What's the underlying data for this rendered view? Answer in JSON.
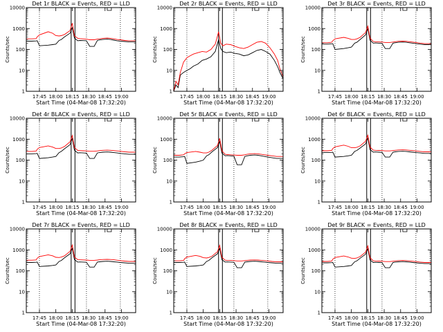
{
  "chart_data": [
    {
      "type": "line",
      "title": "Det 1r BLACK = Events, RED = LLD",
      "xlabel": "Start Time (04-Mar-08 17:32:20)",
      "ylabel": "Counts/sec",
      "xticks": [
        "17:45",
        "18:00",
        "18:15",
        "18:30",
        "18:45",
        "19:00"
      ],
      "yticks": [
        "1",
        "10",
        "100",
        "1000",
        "10000"
      ],
      "ylim": [
        1,
        10000
      ],
      "yscale": "log",
      "x": [
        0,
        5,
        9,
        10,
        12,
        20,
        24,
        27,
        30,
        32,
        35,
        40,
        42,
        44,
        47,
        49,
        52,
        55,
        58,
        62,
        65,
        67,
        70,
        74,
        77,
        80,
        83,
        86,
        90,
        94,
        100
      ],
      "series": [
        {
          "name": "BLACK = Events",
          "color": "#000000",
          "values": [
            250,
            250,
            255,
            260,
            150,
            160,
            170,
            180,
            270,
            300,
            400,
            600,
            1100,
            350,
            260,
            270,
            265,
            260,
            140,
            140,
            270,
            285,
            300,
            310,
            300,
            280,
            260,
            250,
            240,
            230,
            230
          ]
        },
        {
          "name": "RED = LLD",
          "color": "#ff0000",
          "values": [
            320,
            320,
            330,
            400,
            500,
            700,
            600,
            460,
            440,
            460,
            520,
            800,
            1800,
            450,
            340,
            330,
            320,
            310,
            290,
            290,
            310,
            320,
            340,
            350,
            340,
            320,
            300,
            290,
            270,
            260,
            260
          ]
        }
      ]
    },
    {
      "type": "line",
      "title": "Det 2r BLACK = Events, RED = LLD",
      "xlabel": "Start Time (04-Mar-08 17:32:20)",
      "ylabel": "Counts/sec",
      "xticks": [
        "17:45",
        "18:00",
        "18:15",
        "18:30",
        "18:45",
        "19:00"
      ],
      "yticks": [
        "1",
        "10",
        "100",
        "1000",
        "10000"
      ],
      "ylim": [
        1,
        10000
      ],
      "yscale": "log",
      "x": [
        0,
        2,
        4,
        6,
        9,
        12,
        15,
        18,
        22,
        26,
        30,
        34,
        38,
        41,
        43,
        45,
        48,
        52,
        56,
        60,
        64,
        68,
        72,
        76,
        80,
        84,
        88,
        92,
        95,
        97,
        100
      ],
      "series": [
        {
          "name": "BLACK = Events",
          "color": "#000000",
          "values": [
            1,
            2,
            1.5,
            6,
            8,
            10,
            12,
            16,
            20,
            30,
            35,
            45,
            80,
            300,
            110,
            80,
            70,
            75,
            65,
            60,
            50,
            55,
            70,
            90,
            100,
            80,
            60,
            30,
            15,
            8,
            4
          ]
        },
        {
          "name": "RED = LLD",
          "color": "#ff0000",
          "values": [
            1,
            3,
            2,
            8,
            25,
            40,
            50,
            60,
            70,
            80,
            75,
            100,
            180,
            700,
            200,
            150,
            180,
            170,
            140,
            120,
            110,
            130,
            170,
            220,
            240,
            200,
            120,
            60,
            30,
            12,
            5
          ]
        }
      ]
    },
    {
      "type": "line",
      "title": "Det 3r BLACK = Events, RED = LLD",
      "xlabel": "Start Time (04-Mar-08 17:32:20)",
      "ylabel": "Counts/sec",
      "xticks": [
        "17:45",
        "18:00",
        "18:15",
        "18:30",
        "18:45",
        "19:00"
      ],
      "yticks": [
        "1",
        "10",
        "100",
        "1000",
        "10000"
      ],
      "ylim": [
        1,
        10000
      ],
      "yscale": "log",
      "x": [
        0,
        5,
        9,
        10,
        12,
        20,
        24,
        27,
        30,
        32,
        35,
        40,
        42,
        44,
        47,
        49,
        52,
        55,
        58,
        62,
        65,
        67,
        70,
        74,
        77,
        80,
        83,
        86,
        90,
        94,
        100
      ],
      "series": [
        {
          "name": "BLACK = Events",
          "color": "#000000",
          "values": [
            180,
            180,
            185,
            190,
            100,
            110,
            120,
            130,
            200,
            220,
            300,
            500,
            1000,
            280,
            200,
            205,
            200,
            195,
            110,
            110,
            200,
            210,
            220,
            225,
            220,
            210,
            200,
            190,
            180,
            170,
            170
          ]
        },
        {
          "name": "RED = LLD",
          "color": "#ff0000",
          "values": [
            210,
            210,
            220,
            260,
            320,
            380,
            340,
            300,
            300,
            320,
            380,
            650,
            1300,
            350,
            240,
            235,
            230,
            225,
            215,
            215,
            225,
            235,
            245,
            250,
            245,
            235,
            225,
            215,
            200,
            190,
            190
          ]
        }
      ]
    },
    {
      "type": "line",
      "title": "Det 4r BLACK = Events, RED = LLD",
      "xlabel": "Start Time (04-Mar-08 17:32:20)",
      "ylabel": "Counts/sec",
      "xticks": [
        "17:45",
        "18:00",
        "18:15",
        "18:30",
        "18:45",
        "19:00"
      ],
      "yticks": [
        "1",
        "10",
        "100",
        "1000",
        "10000"
      ],
      "ylim": [
        1,
        10000
      ],
      "yscale": "log",
      "x": [
        0,
        5,
        9,
        10,
        12,
        20,
        24,
        27,
        30,
        32,
        35,
        40,
        42,
        44,
        47,
        49,
        52,
        55,
        58,
        62,
        65,
        67,
        70,
        74,
        77,
        80,
        83,
        86,
        90,
        94,
        100
      ],
      "series": [
        {
          "name": "BLACK = Events",
          "color": "#000000",
          "values": [
            200,
            200,
            205,
            210,
            120,
            130,
            140,
            150,
            230,
            260,
            350,
            550,
            1100,
            300,
            220,
            225,
            220,
            215,
            120,
            120,
            220,
            230,
            240,
            245,
            240,
            230,
            220,
            210,
            200,
            190,
            190
          ]
        },
        {
          "name": "RED = LLD",
          "color": "#ff0000",
          "values": [
            260,
            260,
            270,
            330,
            400,
            480,
            420,
            360,
            360,
            380,
            450,
            750,
            1500,
            400,
            290,
            285,
            280,
            275,
            265,
            265,
            275,
            285,
            295,
            300,
            295,
            285,
            275,
            265,
            250,
            240,
            240
          ]
        }
      ]
    },
    {
      "type": "line",
      "title": "Det 5r BLACK = Events, RED = LLD",
      "xlabel": "Start Time (04-Mar-08 17:32:20)",
      "ylabel": "Counts/sec",
      "xticks": [
        "17:45",
        "18:00",
        "18:15",
        "18:30",
        "18:45",
        "19:00"
      ],
      "yticks": [
        "1",
        "10",
        "100",
        "1000",
        "10000"
      ],
      "ylim": [
        1,
        10000
      ],
      "yscale": "log",
      "x": [
        0,
        5,
        9,
        10,
        12,
        20,
        24,
        27,
        30,
        32,
        35,
        40,
        42,
        44,
        47,
        49,
        52,
        55,
        58,
        62,
        65,
        67,
        70,
        74,
        77,
        80,
        83,
        86,
        90,
        94,
        100
      ],
      "series": [
        {
          "name": "BLACK = Events",
          "color": "#000000",
          "values": [
            140,
            140,
            145,
            150,
            70,
            80,
            90,
            100,
            160,
            180,
            250,
            400,
            800,
            220,
            160,
            165,
            160,
            155,
            60,
            60,
            150,
            160,
            170,
            175,
            170,
            160,
            150,
            140,
            130,
            120,
            120
          ]
        },
        {
          "name": "RED = LLD",
          "color": "#ff0000",
          "values": [
            170,
            170,
            180,
            200,
            230,
            260,
            240,
            220,
            220,
            240,
            300,
            500,
            1100,
            280,
            190,
            185,
            180,
            175,
            170,
            170,
            180,
            190,
            200,
            205,
            200,
            190,
            180,
            170,
            160,
            150,
            150
          ]
        }
      ]
    },
    {
      "type": "line",
      "title": "Det 6r BLACK = Events, RED = LLD",
      "xlabel": "Start Time (04-Mar-08 17:32:20)",
      "ylabel": "Counts/sec",
      "xticks": [
        "17:45",
        "18:00",
        "18:15",
        "18:30",
        "18:45",
        "19:00"
      ],
      "yticks": [
        "1",
        "10",
        "100",
        "1000",
        "10000"
      ],
      "ylim": [
        1,
        10000
      ],
      "yscale": "log",
      "x": [
        0,
        5,
        9,
        10,
        12,
        20,
        24,
        27,
        30,
        32,
        35,
        40,
        42,
        44,
        47,
        49,
        52,
        55,
        58,
        62,
        65,
        67,
        70,
        74,
        77,
        80,
        83,
        86,
        90,
        94,
        100
      ],
      "series": [
        {
          "name": "BLACK = Events",
          "color": "#000000",
          "values": [
            230,
            230,
            235,
            240,
            140,
            150,
            160,
            170,
            260,
            290,
            380,
            600,
            1150,
            320,
            240,
            245,
            240,
            235,
            140,
            140,
            240,
            250,
            260,
            265,
            260,
            250,
            240,
            230,
            220,
            210,
            210
          ]
        },
        {
          "name": "RED = LLD",
          "color": "#ff0000",
          "values": [
            280,
            280,
            290,
            360,
            430,
            520,
            460,
            390,
            390,
            410,
            480,
            800,
            1550,
            420,
            300,
            295,
            290,
            285,
            275,
            275,
            285,
            295,
            305,
            310,
            305,
            295,
            285,
            275,
            260,
            250,
            250
          ]
        }
      ]
    },
    {
      "type": "line",
      "title": "Det 7r BLACK = Events, RED = LLD",
      "xlabel": "Start Time (04-Mar-08 17:32:20)",
      "ylabel": "Counts/sec",
      "xticks": [
        "17:45",
        "18:00",
        "18:15",
        "18:30",
        "18:45",
        "19:00"
      ],
      "yticks": [
        "1",
        "10",
        "100",
        "1000",
        "10000"
      ],
      "ylim": [
        1,
        10000
      ],
      "yscale": "log",
      "x": [
        0,
        5,
        9,
        10,
        12,
        20,
        24,
        27,
        30,
        32,
        35,
        40,
        42,
        44,
        47,
        49,
        52,
        55,
        58,
        62,
        65,
        67,
        70,
        74,
        77,
        80,
        83,
        86,
        90,
        94,
        100
      ],
      "series": [
        {
          "name": "BLACK = Events",
          "color": "#000000",
          "values": [
            250,
            250,
            255,
            260,
            160,
            170,
            180,
            190,
            280,
            310,
            420,
            650,
            1200,
            340,
            260,
            265,
            260,
            255,
            150,
            150,
            260,
            270,
            280,
            285,
            280,
            270,
            260,
            250,
            240,
            230,
            230
          ]
        },
        {
          "name": "RED = LLD",
          "color": "#ff0000",
          "values": [
            320,
            320,
            330,
            400,
            480,
            580,
            520,
            440,
            430,
            450,
            520,
            850,
            1700,
            460,
            340,
            335,
            330,
            325,
            315,
            315,
            325,
            335,
            345,
            350,
            345,
            335,
            320,
            305,
            290,
            280,
            280
          ]
        }
      ]
    },
    {
      "type": "line",
      "title": "Det 8r BLACK = Events, RED = LLD",
      "xlabel": "Start Time (04-Mar-08 17:32:20)",
      "ylabel": "Counts/sec",
      "xticks": [
        "17:45",
        "18:00",
        "18:15",
        "18:30",
        "18:45",
        "19:00"
      ],
      "yticks": [
        "1",
        "10",
        "100",
        "1000",
        "10000"
      ],
      "ylim": [
        1,
        10000
      ],
      "yscale": "log",
      "x": [
        0,
        5,
        9,
        10,
        12,
        20,
        24,
        27,
        30,
        32,
        35,
        40,
        42,
        44,
        47,
        49,
        52,
        55,
        58,
        62,
        65,
        67,
        70,
        74,
        77,
        80,
        83,
        86,
        90,
        94,
        100
      ],
      "series": [
        {
          "name": "BLACK = Events",
          "color": "#000000",
          "values": [
            250,
            250,
            255,
            260,
            160,
            170,
            180,
            190,
            280,
            310,
            420,
            650,
            1200,
            340,
            260,
            265,
            260,
            255,
            140,
            140,
            260,
            270,
            280,
            285,
            280,
            270,
            260,
            250,
            240,
            230,
            230
          ]
        },
        {
          "name": "RED = LLD",
          "color": "#ff0000",
          "values": [
            300,
            300,
            310,
            380,
            450,
            540,
            490,
            420,
            410,
            430,
            500,
            820,
            1650,
            440,
            320,
            315,
            310,
            305,
            295,
            295,
            305,
            315,
            325,
            330,
            325,
            315,
            305,
            295,
            280,
            270,
            270
          ]
        }
      ]
    },
    {
      "type": "line",
      "title": "Det 9r BLACK = Events, RED = LLD",
      "xlabel": "Start Time (04-Mar-08 17:32:20)",
      "ylabel": "Counts/sec",
      "xticks": [
        "17:45",
        "18:00",
        "18:15",
        "18:30",
        "18:45",
        "19:00"
      ],
      "yticks": [
        "1",
        "10",
        "100",
        "1000",
        "10000"
      ],
      "ylim": [
        1,
        10000
      ],
      "yscale": "log",
      "x": [
        0,
        5,
        9,
        10,
        12,
        20,
        24,
        27,
        30,
        32,
        35,
        40,
        42,
        44,
        47,
        49,
        52,
        55,
        58,
        62,
        65,
        67,
        70,
        74,
        77,
        80,
        83,
        86,
        90,
        94,
        100
      ],
      "series": [
        {
          "name": "BLACK = Events",
          "color": "#000000",
          "values": [
            240,
            240,
            245,
            250,
            150,
            160,
            170,
            180,
            270,
            300,
            400,
            620,
            1150,
            330,
            250,
            255,
            250,
            245,
            140,
            140,
            250,
            260,
            270,
            275,
            270,
            260,
            250,
            240,
            230,
            220,
            220
          ]
        },
        {
          "name": "RED = LLD",
          "color": "#ff0000",
          "values": [
            280,
            280,
            290,
            360,
            430,
            510,
            460,
            400,
            390,
            410,
            480,
            780,
            1550,
            420,
            300,
            295,
            290,
            285,
            275,
            275,
            285,
            295,
            305,
            310,
            305,
            295,
            285,
            275,
            260,
            250,
            250
          ]
        }
      ]
    }
  ]
}
